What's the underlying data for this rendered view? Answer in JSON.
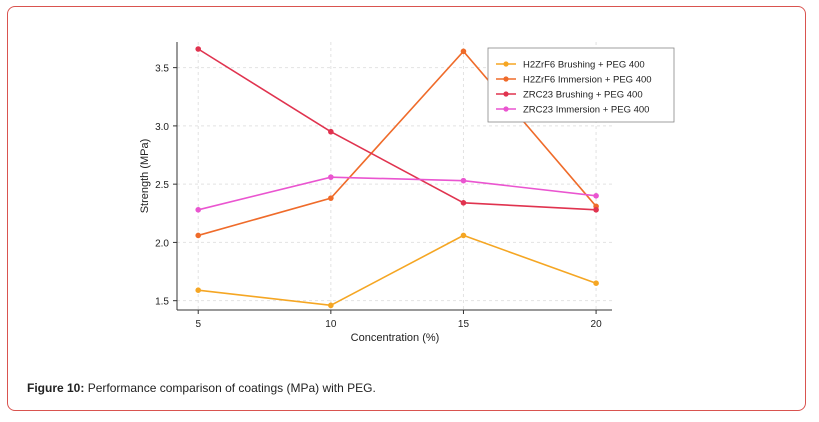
{
  "figure": {
    "label": "Figure 10:",
    "caption": " Performance comparison of coatings (MPa) with PEG."
  },
  "chart_data": {
    "type": "line",
    "xlabel": "Concentration (%)",
    "ylabel": "Strength (MPa)",
    "x": [
      5,
      10,
      15,
      20
    ],
    "xticks": [
      "5",
      "10",
      "15",
      "20"
    ],
    "yticks": [
      "1.5",
      "2.0",
      "2.5",
      "3.0",
      "3.5"
    ],
    "xlim": [
      4.2,
      20.6
    ],
    "ylim": [
      1.42,
      3.72
    ],
    "grid": true,
    "legend_position": "top-right",
    "series": [
      {
        "name": "H2ZrF6 Brushing + PEG 400",
        "color": "#f5a623",
        "values": [
          1.59,
          1.46,
          2.06,
          1.65
        ]
      },
      {
        "name": "H2ZrF6 Immersion + PEG 400",
        "color": "#ef6b2a",
        "values": [
          2.06,
          2.38,
          3.64,
          2.31
        ]
      },
      {
        "name": "ZRC23 Brushing + PEG 400",
        "color": "#e0334f",
        "values": [
          3.66,
          2.95,
          2.34,
          2.28
        ]
      },
      {
        "name": "ZRC23 Immersion + PEG 400",
        "color": "#ea55d0",
        "values": [
          2.28,
          2.56,
          2.53,
          2.4
        ]
      }
    ]
  }
}
